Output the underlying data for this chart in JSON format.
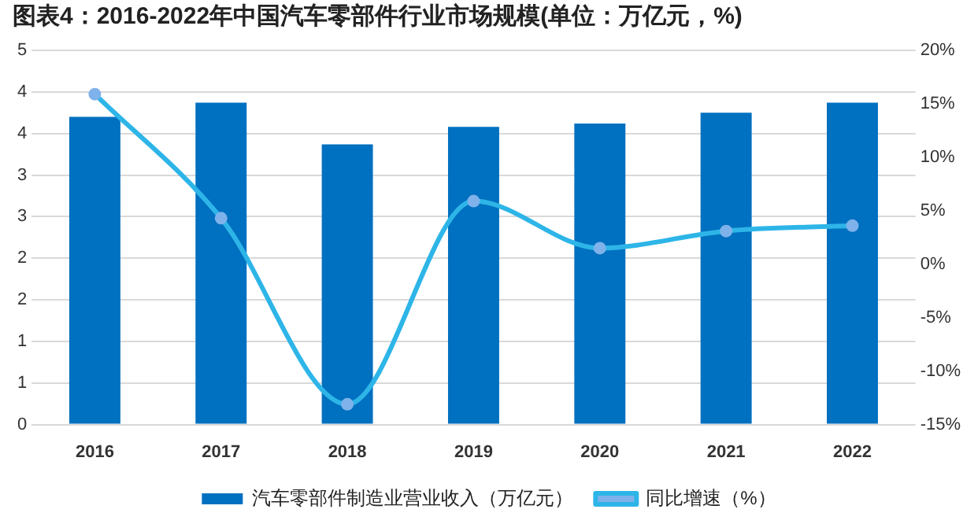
{
  "chart_data": {
    "type": "bar",
    "title": "图表4：2016-2022年中国汽车零部件行业市场规模(单位：万亿元，%)",
    "categories": [
      "2016",
      "2017",
      "2018",
      "2019",
      "2020",
      "2021",
      "2022"
    ],
    "series": [
      {
        "name": "汽车零部件制造业营业收入（万亿元）",
        "color": "#0070c0",
        "values": [
          3.7,
          3.87,
          3.37,
          3.58,
          3.62,
          3.75,
          3.87
        ]
      },
      {
        "name": "同比增速（%）",
        "type": "line",
        "axis": "y2",
        "color": "#2eb5e8",
        "marker": "circle",
        "values": [
          15.9,
          4.3,
          -13.1,
          5.9,
          1.5,
          3.1,
          3.6
        ]
      }
    ],
    "ylim": [
      0,
      4.5
    ],
    "yticks": [
      0,
      {
        "value": 0.5,
        "label": "1"
      },
      1,
      {
        "value": 1.5,
        "label": "2"
      },
      2,
      {
        "value": 2.5,
        "label": "3"
      },
      3,
      {
        "value": 3.5,
        "label": "4"
      },
      4,
      {
        "value": 4.5,
        "label": "5"
      }
    ],
    "y2lim": [
      -15,
      20
    ],
    "y2ticks": [
      {
        "value": -15,
        "label": "-15%"
      },
      {
        "value": -10,
        "label": "-10%"
      },
      {
        "value": -5,
        "label": "-5%"
      },
      {
        "value": 0,
        "label": "0%"
      },
      {
        "value": 5,
        "label": "5%"
      },
      {
        "value": 10,
        "label": "10%"
      },
      {
        "value": 15,
        "label": "15%"
      },
      {
        "value": 20,
        "label": "20%"
      }
    ],
    "grid": "y",
    "legend": "bottom"
  }
}
